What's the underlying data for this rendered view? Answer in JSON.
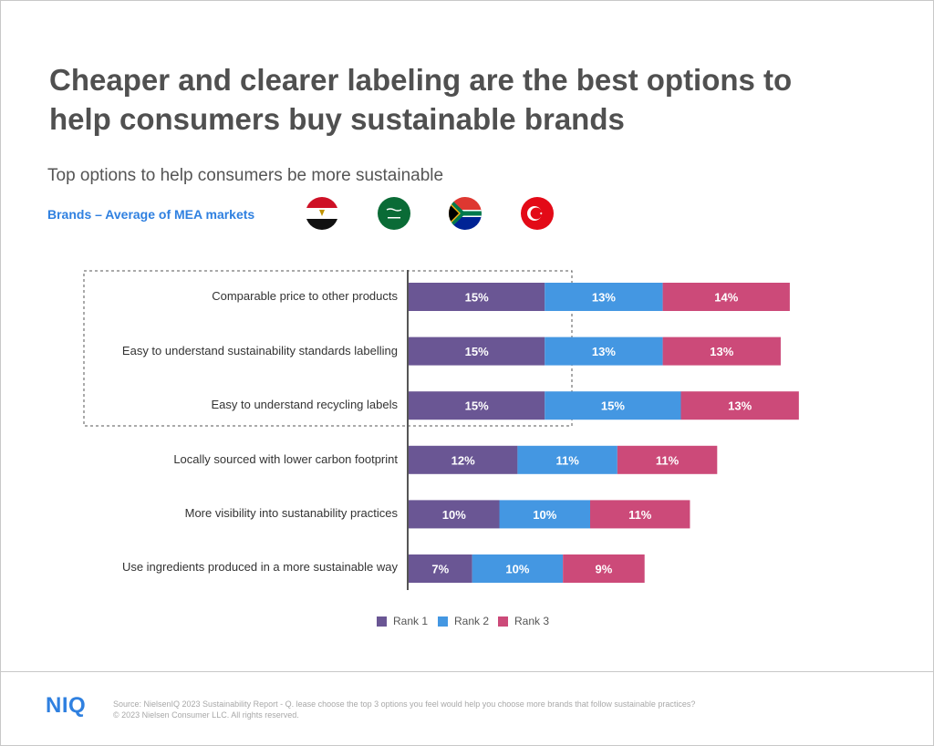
{
  "header": {
    "title_line1": "Cheaper and clearer labeling are the best options to",
    "title_line2": "help consumers buy sustainable brands",
    "subtitle": "Top options to help consumers be more sustainable",
    "market_label": "Brands – Average of MEA markets"
  },
  "flags": [
    {
      "icon": "egypt-flag-icon"
    },
    {
      "icon": "saudi-arabia-flag-icon"
    },
    {
      "icon": "south-africa-flag-icon"
    },
    {
      "icon": "turkey-flag-icon"
    }
  ],
  "colors": {
    "rank1": "#6a5694",
    "rank2": "#4497e2",
    "rank3": "#cc4a79",
    "accent": "#2f80e0"
  },
  "chart_data": {
    "type": "bar",
    "orientation": "horizontal",
    "stacked": true,
    "categories": [
      "Comparable price to other products",
      "Easy to understand sustainability standards labelling",
      "Easy to understand recycling labels",
      "Locally sourced with lower carbon footprint",
      "More visibility into sustanability practices",
      "Use ingredients produced in a more sustainable way"
    ],
    "series": [
      {
        "name": "Rank 1",
        "values": [
          15,
          15,
          15,
          12,
          10,
          7
        ],
        "labels": [
          "15%",
          "15%",
          "15%",
          "12%",
          "10%",
          "7%"
        ]
      },
      {
        "name": "Rank 2",
        "values": [
          13,
          13,
          15,
          11,
          10,
          10
        ],
        "labels": [
          "13%",
          "13%",
          "15%",
          "11%",
          "10%",
          "10%"
        ]
      },
      {
        "name": "Rank 3",
        "values": [
          14,
          13,
          13,
          11,
          11,
          9
        ],
        "labels": [
          "14%",
          "13%",
          "13%",
          "11%",
          "11%",
          "9%"
        ]
      }
    ],
    "highlighted_categories": [
      0,
      1,
      2
    ],
    "legend_position": "bottom",
    "grid": false
  },
  "footer": {
    "logo": "NIQ",
    "source_line1": "Source: NielsenIQ 2023 Sustainability Report - Q. lease choose the top 3 options you feel would help you choose more brands that follow sustainable practices?",
    "source_line2": "© 2023 Nielsen Consumer LLC. All rights reserved."
  }
}
